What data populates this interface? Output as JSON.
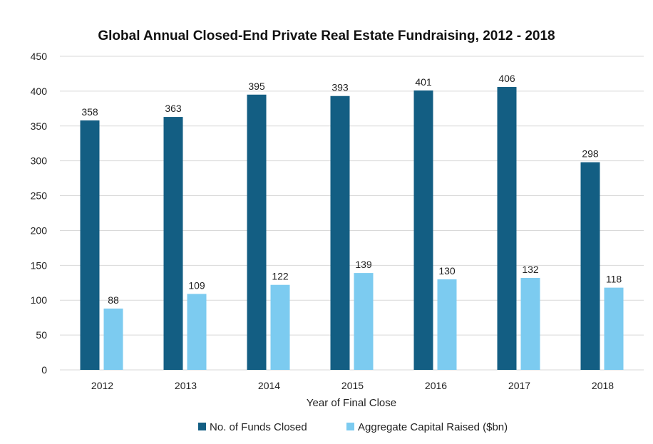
{
  "chart_data": {
    "type": "bar",
    "title": "Global Annual Closed-End Private Real Estate Fundraising, 2012 - 2018",
    "xlabel": "Year of Final Close",
    "ylabel": "",
    "ylim": [
      0,
      450
    ],
    "yticks": [
      0,
      50,
      100,
      150,
      200,
      250,
      300,
      350,
      400,
      450
    ],
    "categories": [
      "2012",
      "2013",
      "2014",
      "2015",
      "2016",
      "2017",
      "2018"
    ],
    "series": [
      {
        "name": "No. of Funds Closed",
        "color": "#135e83",
        "values": [
          358,
          363,
          395,
          393,
          401,
          406,
          298
        ]
      },
      {
        "name": "Aggregate Capital Raised ($bn)",
        "color": "#7ccbf0",
        "values": [
          88,
          109,
          122,
          139,
          130,
          132,
          118
        ]
      }
    ],
    "grid": true,
    "legend_position": "bottom",
    "data_labels": true
  }
}
